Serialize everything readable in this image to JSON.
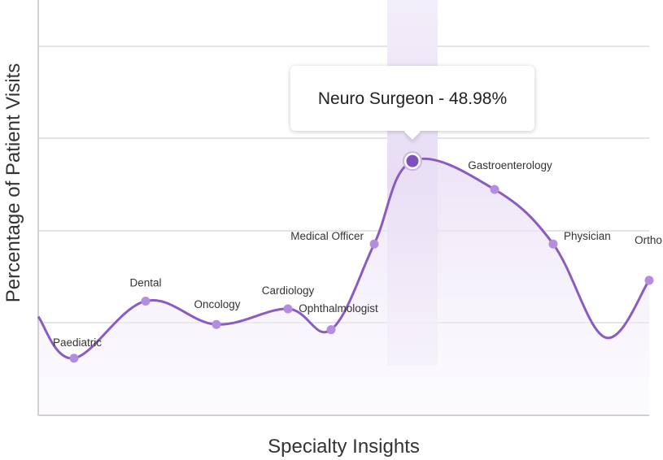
{
  "chart_data": {
    "type": "line",
    "title": "",
    "xlabel": "Specialty Insights",
    "ylabel": "Percentage of Patient Visits",
    "ylim": [
      0,
      80
    ],
    "grid": true,
    "colors": {
      "line": "#8a5cc2",
      "marker": "#b48de0",
      "highlight": "#7e4fc0",
      "band": "#ece4f6"
    },
    "points": [
      {
        "label": "",
        "value": 19
      },
      {
        "label": "Paediatric",
        "value": 11
      },
      {
        "label": "Dental",
        "value": 22
      },
      {
        "label": "Oncology",
        "value": 17.5
      },
      {
        "label": "Cardiology",
        "value": 20.5
      },
      {
        "label": "Ophthalmologist",
        "value": 16.5
      },
      {
        "label": "Medical Officer",
        "value": 33
      },
      {
        "label": "Neuro Surgeon",
        "value": 48.98
      },
      {
        "label": "Gastroenterology",
        "value": 43.5
      },
      {
        "label": "Physician",
        "value": 33
      },
      {
        "label": "",
        "value": 15
      },
      {
        "label": "Ortho",
        "value": 26
      }
    ],
    "label_positions": [
      "",
      "below",
      "above",
      "below",
      "above",
      "below",
      "left",
      "",
      "above",
      "right",
      "",
      "above"
    ],
    "highlight_index": 7
  },
  "tooltip": {
    "text": "Neuro Surgeon - 48.98%"
  }
}
